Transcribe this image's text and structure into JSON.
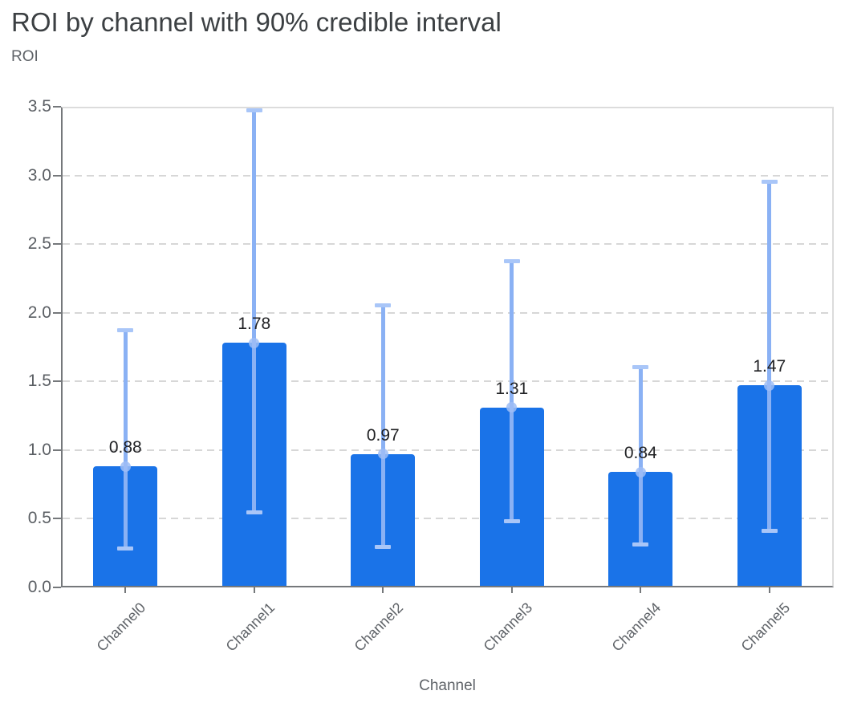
{
  "header": {
    "title": "ROI by channel with 90% credible interval"
  },
  "chart_data": {
    "type": "bar",
    "title": "ROI by channel with 90% credible interval",
    "xlabel": "Channel",
    "ylabel": "ROI",
    "ylim": [
      0,
      3.5
    ],
    "y_ticks": [
      "0.0",
      "0.5",
      "1.0",
      "1.5",
      "2.0",
      "2.5",
      "3.0",
      "3.5"
    ],
    "grid": "horizontal-dashed",
    "legend_position": "none",
    "categories": [
      "Channel0",
      "Channel1",
      "Channel2",
      "Channel3",
      "Channel4",
      "Channel5"
    ],
    "series": [
      {
        "name": "ROI",
        "values": [
          0.88,
          1.78,
          0.97,
          1.31,
          0.84,
          1.47
        ],
        "bar_labels": [
          "0.88",
          "1.78",
          "0.97",
          "1.31",
          "0.84",
          "1.47"
        ]
      }
    ],
    "error_bars": {
      "label": "90% credible interval",
      "lower": [
        0.27,
        0.53,
        0.28,
        0.47,
        0.3,
        0.4
      ],
      "upper": [
        1.89,
        3.49,
        2.07,
        2.39,
        1.62,
        2.97
      ]
    },
    "colors": {
      "bar": "#1a73e8",
      "error_line": "#8ab1f4",
      "error_cap": "#a9c6f8",
      "marker": "#9dbdf6",
      "title_text": "#3c4043",
      "axis_text": "#5f6368",
      "value_text": "#202124"
    }
  }
}
